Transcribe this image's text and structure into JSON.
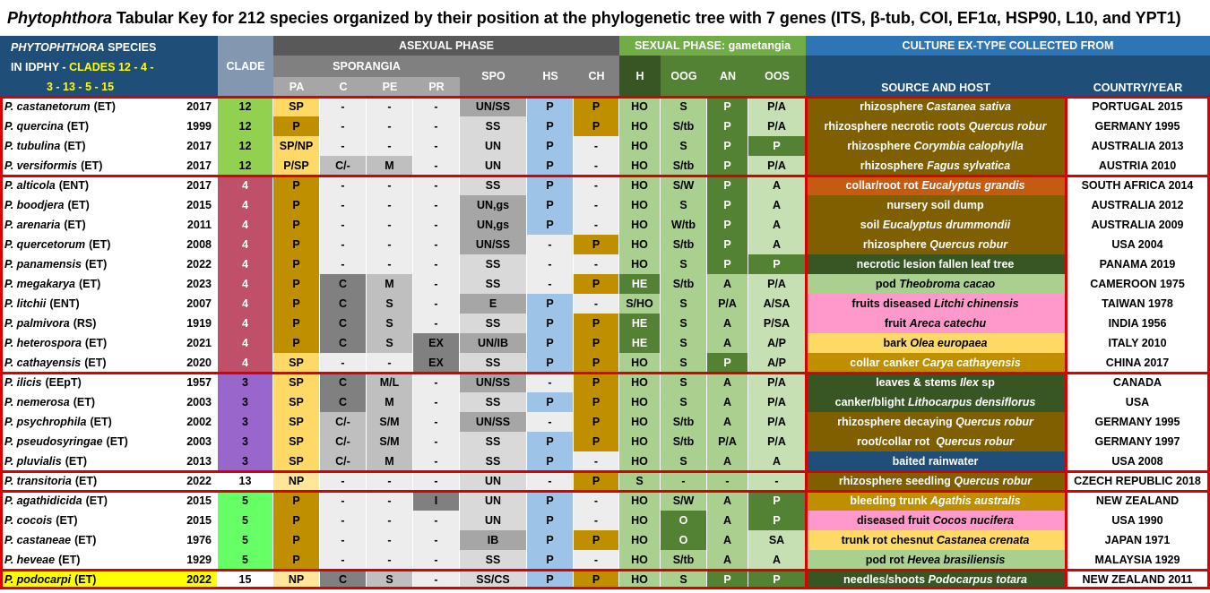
{
  "title": {
    "genus": "Phytophthora",
    "rest": " Tabular Key for 212 species organized by their position at the phylogenetic tree with 7 genes (ITS, β-tub, COI, EF1α, HSP90, L10, and YPT1)"
  },
  "header": {
    "species_line1": "PHYTOPHTHORA",
    "species_line1b": " SPECIES",
    "species_line2": "IN IDPHY -",
    "clades_line1": "CLADES 12 - 4 -",
    "clades_line2": "3 - 13 - 5 - 15",
    "clade": "CLADE",
    "asexual": "ASEXUAL PHASE",
    "sporangia": "SPORANGIA",
    "pa": "PA",
    "c": "C",
    "pe": "PE",
    "pr": "PR",
    "spo": "SPO",
    "hs": "HS",
    "ch": "CH",
    "sexual": "SEXUAL PHASE: gametangia",
    "h": "H",
    "oog": "OOG",
    "an": "AN",
    "oos": "OOS",
    "culture": "CULTURE EX-TYPE COLLECTED FROM",
    "source": "SOURCE AND HOST",
    "country": "COUNTRY/YEAR"
  },
  "colors": {
    "c12": "#92d050",
    "c4": "#c0506a",
    "c3": "#9966cc",
    "c13": "#ffffff",
    "c5": "#66ff66",
    "c15": "#ffffff"
  },
  "rows": [
    {
      "sp": "P. castanetorum",
      "t": "(ET)",
      "y": "2017",
      "cl": "12",
      "pa": "SP",
      "c": "-",
      "pe": "-",
      "pr": "-",
      "spo": "UN/SS",
      "hs": "P",
      "ch": "P",
      "h": "HO",
      "oog": "S",
      "an": "P",
      "oos": "P/A",
      "src": "rhizosphere ",
      "host": "Castanea sativa",
      "cty": "PORTUGAL 2015",
      "sc": "#7f5f00"
    },
    {
      "sp": "P. quercina",
      "t": "(ET)",
      "y": "1999",
      "cl": "12",
      "pa": "P",
      "c": "-",
      "pe": "-",
      "pr": "-",
      "spo": "SS",
      "hs": "P",
      "ch": "P",
      "h": "HO",
      "oog": "S/tb",
      "an": "P",
      "oos": "P/A",
      "src": "rhizosphere necrotic roots ",
      "host": "Quercus robur",
      "cty": "GERMANY 1995",
      "sc": "#7f5f00"
    },
    {
      "sp": "P. tubulina",
      "t": "(ET)",
      "y": "2017",
      "cl": "12",
      "pa": "SP/NP",
      "c": "-",
      "pe": "-",
      "pr": "-",
      "spo": "UN",
      "hs": "P",
      "ch": "-",
      "h": "HO",
      "oog": "S",
      "an": "P",
      "oos": "P",
      "src": "rhizosphere ",
      "host": "Corymbia calophylla",
      "cty": "AUSTRALIA 2013",
      "sc": "#7f5f00"
    },
    {
      "sp": "P. versiformis",
      "t": "(ET)",
      "y": "2017",
      "cl": "12",
      "pa": "P/SP",
      "c": "C/-",
      "pe": "M",
      "pr": "-",
      "spo": "UN",
      "hs": "P",
      "ch": "-",
      "h": "HO",
      "oog": "S/tb",
      "an": "P",
      "oos": "P/A",
      "src": "rhizosphere ",
      "host": "Fagus sylvatica",
      "cty": "AUSTRIA 2010",
      "sc": "#7f5f00"
    },
    {
      "sp": "P. alticola",
      "t": "(ENT)",
      "y": "2017",
      "cl": "4",
      "pa": "P",
      "c": "-",
      "pe": "-",
      "pr": "-",
      "spo": "SS",
      "hs": "P",
      "ch": "-",
      "h": "HO",
      "oog": "S/W",
      "an": "P",
      "oos": "A",
      "src": "collar/root rot ",
      "host": "Eucalyptus grandis",
      "cty": "SOUTH AFRICA 2014",
      "sc": "#c55a11"
    },
    {
      "sp": "P. boodjera",
      "t": "(ET)",
      "y": "2015",
      "cl": "4",
      "pa": "P",
      "c": "-",
      "pe": "-",
      "pr": "-",
      "spo": "UN,gs",
      "hs": "P",
      "ch": "-",
      "h": "HO",
      "oog": "S",
      "an": "P",
      "oos": "A",
      "src": "nursery soil dump",
      "host": "",
      "cty": "AUSTRALIA 2012",
      "sc": "#7f5f00"
    },
    {
      "sp": "P. arenaria",
      "t": "(ET)",
      "y": "2011",
      "cl": "4",
      "pa": "P",
      "c": "-",
      "pe": "-",
      "pr": "-",
      "spo": "UN,gs",
      "hs": "P",
      "ch": "-",
      "h": "HO",
      "oog": "W/tb",
      "an": "P",
      "oos": "A",
      "src": "soil ",
      "host": "Eucalyptus drummondii",
      "cty": "AUSTRALIA 2009",
      "sc": "#7f5f00"
    },
    {
      "sp": "P. quercetorum",
      "t": "(ET)",
      "y": "2008",
      "cl": "4",
      "pa": "P",
      "c": "-",
      "pe": "-",
      "pr": "-",
      "spo": "UN/SS",
      "hs": "-",
      "ch": "P",
      "h": "HO",
      "oog": "S/tb",
      "an": "P",
      "oos": "A",
      "src": "rhizosphere ",
      "host": "Quercus robur",
      "cty": "USA 2004",
      "sc": "#7f5f00"
    },
    {
      "sp": "P. panamensis",
      "t": "(ET)",
      "y": "2022",
      "cl": "4",
      "pa": "P",
      "c": "-",
      "pe": "-",
      "pr": "-",
      "spo": "SS",
      "hs": "-",
      "ch": "-",
      "h": "HO",
      "oog": "S",
      "an": "P",
      "oos": "P",
      "src": "necrotic lesion fallen leaf tree",
      "host": "",
      "cty": "PANAMA 2019",
      "sc": "#375623"
    },
    {
      "sp": "P. megakarya",
      "t": "(ET)",
      "y": "2023",
      "cl": "4",
      "pa": "P",
      "c": "C",
      "pe": "M",
      "pr": "-",
      "spo": "SS",
      "hs": "-",
      "ch": "P",
      "h": "HE",
      "oog": "S/tb",
      "an": "A",
      "oos": "P/A",
      "src": "pod ",
      "host": "Theobroma cacao",
      "cty": "CAMEROON 1975",
      "sc": "#a9d08e",
      "dark": true
    },
    {
      "sp": "P. litchii",
      "t": "(ENT)",
      "y": "2007",
      "cl": "4",
      "pa": "P",
      "c": "C",
      "pe": "S",
      "pr": "-",
      "spo": "E",
      "hs": "P",
      "ch": "-",
      "h": "S/HO",
      "oog": "S",
      "an": "P/A",
      "oos": "A/SA",
      "src": "fruits diseased ",
      "host": "Litchi chinensis",
      "cty": "TAIWAN 1978",
      "sc": "#ff99cc",
      "dark": true
    },
    {
      "sp": "P. palmivora",
      "t": "(RS)",
      "y": "1919",
      "cl": "4",
      "pa": "P",
      "c": "C",
      "pe": "S",
      "pr": "-",
      "spo": "SS",
      "hs": "P",
      "ch": "P",
      "h": "HE",
      "oog": "S",
      "an": "A",
      "oos": "P/SA",
      "src": "fruit ",
      "host": "Areca catechu",
      "cty": "INDIA 1956",
      "sc": "#ff99cc",
      "dark": true
    },
    {
      "sp": "P. heterospora",
      "t": "(ET)",
      "y": "2021",
      "cl": "4",
      "pa": "P",
      "c": "C",
      "pe": "S",
      "pr": "EX",
      "spo": "UN/IB",
      "hs": "P",
      "ch": "P",
      "h": "HE",
      "oog": "S",
      "an": "A",
      "oos": "A/P",
      "src": "bark ",
      "host": "Olea europaea",
      "cty": "ITALY 2010",
      "sc": "#ffd966",
      "dark": true
    },
    {
      "sp": "P. cathayensis",
      "t": "(ET)",
      "y": "2020",
      "cl": "4",
      "pa": "SP",
      "c": "-",
      "pe": "-",
      "pr": "EX",
      "spo": "SS",
      "hs": "P",
      "ch": "P",
      "h": "HO",
      "oog": "S",
      "an": "P",
      "oos": "A/P",
      "src": "collar canker ",
      "host": "Carya cathayensis",
      "cty": "CHINA 2017",
      "sc": "#bf8f00"
    },
    {
      "sp": "P. ilicis",
      "t": "(EEpT)",
      "y": "1957",
      "cl": "3",
      "pa": "SP",
      "c": "C",
      "pe": "M/L",
      "pr": "-",
      "spo": "UN/SS",
      "hs": "-",
      "ch": "P",
      "h": "HO",
      "oog": "S",
      "an": "A",
      "oos": "P/A",
      "src": "leaves & stems ",
      "host": "Ilex",
      "host2": " sp",
      "cty": "CANADA",
      "sc": "#375623"
    },
    {
      "sp": "P. nemerosa",
      "t": "(ET)",
      "y": "2003",
      "cl": "3",
      "pa": "SP",
      "c": "C",
      "pe": "M",
      "pr": "-",
      "spo": "SS",
      "hs": "P",
      "ch": "P",
      "h": "HO",
      "oog": "S",
      "an": "A",
      "oos": "P/A",
      "src": "canker/blight ",
      "host": "Lithocarpus densiflorus",
      "cty": "USA",
      "sc": "#375623"
    },
    {
      "sp": "P. psychrophila",
      "t": "(ET)",
      "y": "2002",
      "cl": "3",
      "pa": "SP",
      "c": "C/-",
      "pe": "S/M",
      "pr": "-",
      "spo": "UN/SS",
      "hs": "-",
      "ch": "P",
      "h": "HO",
      "oog": "S/tb",
      "an": "A",
      "oos": "P/A",
      "src": "rhizosphere decaying ",
      "host": "Quercus robur",
      "cty": "GERMANY 1995",
      "sc": "#7f5f00"
    },
    {
      "sp": "P. pseudosyringae",
      "t": "(ET)",
      "y": "2003",
      "cl": "3",
      "pa": "SP",
      "c": "C/-",
      "pe": "S/M",
      "pr": "-",
      "spo": "SS",
      "hs": "P",
      "ch": "P",
      "h": "HO",
      "oog": "S/tb",
      "an": "P/A",
      "oos": "P/A",
      "src": "root/collar rot  ",
      "host": "Quercus robur",
      "cty": "GERMANY 1997",
      "sc": "#7f5f00"
    },
    {
      "sp": "P. pluvialis",
      "t": "(ET)",
      "y": "2013",
      "cl": "3",
      "pa": "SP",
      "c": "C/-",
      "pe": "M",
      "pr": "-",
      "spo": "SS",
      "hs": "P",
      "ch": "-",
      "h": "HO",
      "oog": "S",
      "an": "A",
      "oos": "A",
      "src": "baited rainwater",
      "host": "",
      "cty": "USA 2008",
      "sc": "#1f4e78"
    },
    {
      "sp": "P. transitoria",
      "t": "(ET)",
      "y": "2022",
      "cl": "13",
      "pa": "NP",
      "c": "-",
      "pe": "-",
      "pr": "-",
      "spo": "UN",
      "hs": "-",
      "ch": "P",
      "h": "S",
      "oog": "-",
      "an": "-",
      "oos": "-",
      "src": "rhizosphere seedling ",
      "host": "Quercus robur",
      "cty": "CZECH REPUBLIC 2018",
      "sc": "#7f5f00"
    },
    {
      "sp": "P. agathidicida",
      "t": "(ET)",
      "y": "2015",
      "cl": "5",
      "pa": "P",
      "c": "-",
      "pe": "-",
      "pr": "I",
      "spo": "UN",
      "hs": "P",
      "ch": "-",
      "h": "HO",
      "oog": "S/W",
      "an": "A",
      "oos": "P",
      "src": "bleeding trunk ",
      "host": "Agathis australis",
      "cty": "NEW ZEALAND",
      "sc": "#bf8f00"
    },
    {
      "sp": "P. cocois",
      "t": "(ET)",
      "y": "2015",
      "cl": "5",
      "pa": "P",
      "c": "-",
      "pe": "-",
      "pr": "-",
      "spo": "UN",
      "hs": "P",
      "ch": "-",
      "h": "HO",
      "oog": "O",
      "an": "A",
      "oos": "P",
      "src": "diseased fruit ",
      "host": "Cocos nucifera",
      "cty": "USA 1990",
      "sc": "#ff99cc",
      "dark": true
    },
    {
      "sp": "P. castaneae",
      "t": "(ET)",
      "y": "1976",
      "cl": "5",
      "pa": "P",
      "c": "-",
      "pe": "-",
      "pr": "-",
      "spo": "IB",
      "hs": "P",
      "ch": "P",
      "h": "HO",
      "oog": "O",
      "an": "A",
      "oos": "SA",
      "src": "trunk rot chesnut ",
      "host": "Castanea crenata",
      "cty": "JAPAN 1971",
      "sc": "#ffd966",
      "dark": true
    },
    {
      "sp": "P. heveae",
      "t": "(ET)",
      "y": "1929",
      "cl": "5",
      "pa": "P",
      "c": "-",
      "pe": "-",
      "pr": "-",
      "spo": "SS",
      "hs": "P",
      "ch": "-",
      "h": "HO",
      "oog": "S/tb",
      "an": "A",
      "oos": "A",
      "src": "pod rot ",
      "host": "Hevea brasiliensis",
      "cty": "MALAYSIA 1929",
      "sc": "#a9d08e",
      "dark": true
    },
    {
      "sp": "P. podocarpi",
      "t": "(ET)",
      "y": "2022",
      "cl": "15",
      "pa": "NP",
      "c": "C",
      "pe": "S",
      "pr": "-",
      "spo": "SS/CS",
      "hs": "P",
      "ch": "P",
      "h": "HO",
      "oog": "S",
      "an": "P",
      "oos": "P",
      "src": "needles/shoots ",
      "host": "Podocarpus totara",
      "cty": "NEW ZEALAND 2011",
      "sc": "#375623"
    }
  ]
}
